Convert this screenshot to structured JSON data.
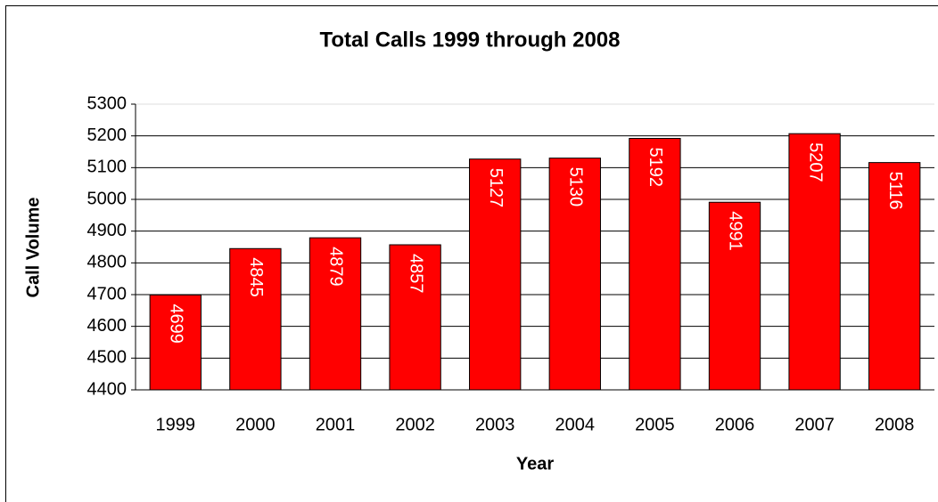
{
  "chart_data": {
    "type": "bar",
    "title": "Total Calls 1999 through 2008",
    "x_label": "Year",
    "y_label": "Call Volume",
    "categories": [
      "1999",
      "2000",
      "2001",
      "2002",
      "2003",
      "2004",
      "2005",
      "2006",
      "2007",
      "2008"
    ],
    "values": [
      4699,
      4845,
      4879,
      4857,
      5127,
      5130,
      5192,
      4991,
      5207,
      5116
    ],
    "color": "#ff0000",
    "ylim": [
      4400,
      5300
    ],
    "yticks": [
      4400,
      4500,
      4600,
      4700,
      4800,
      4900,
      5000,
      5100,
      5200,
      5300
    ],
    "grid": true
  }
}
